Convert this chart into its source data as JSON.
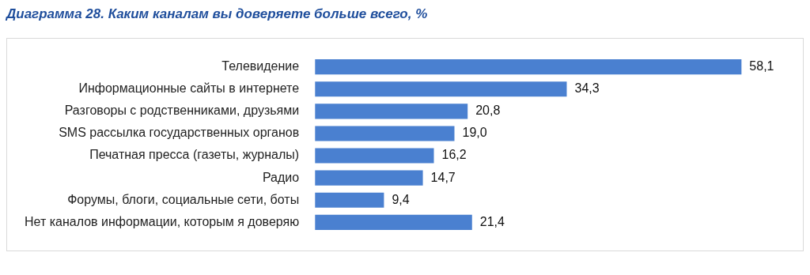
{
  "chart_data": {
    "type": "bar",
    "orientation": "horizontal",
    "title": "Диаграмма 28. Каким каналам вы доверяете больше всего, %",
    "categories": [
      "Телевидение",
      "Информационные сайты в интернете",
      "Разговоры с родственниками, друзьями",
      "SMS рассылка государственных органов",
      "Печатная пресса (газеты, журналы)",
      "Радио",
      "Форумы, блоги, социальные сети, боты",
      "Нет каналов информации, которым я доверяю"
    ],
    "values": [
      58.1,
      34.3,
      20.8,
      19.0,
      16.2,
      14.7,
      9.4,
      21.4
    ],
    "value_labels": [
      "58,1",
      "34,3",
      "20,8",
      "19,0",
      "16,2",
      "14,7",
      "9,4",
      "21,4"
    ],
    "color": "#4a80d0"
  }
}
